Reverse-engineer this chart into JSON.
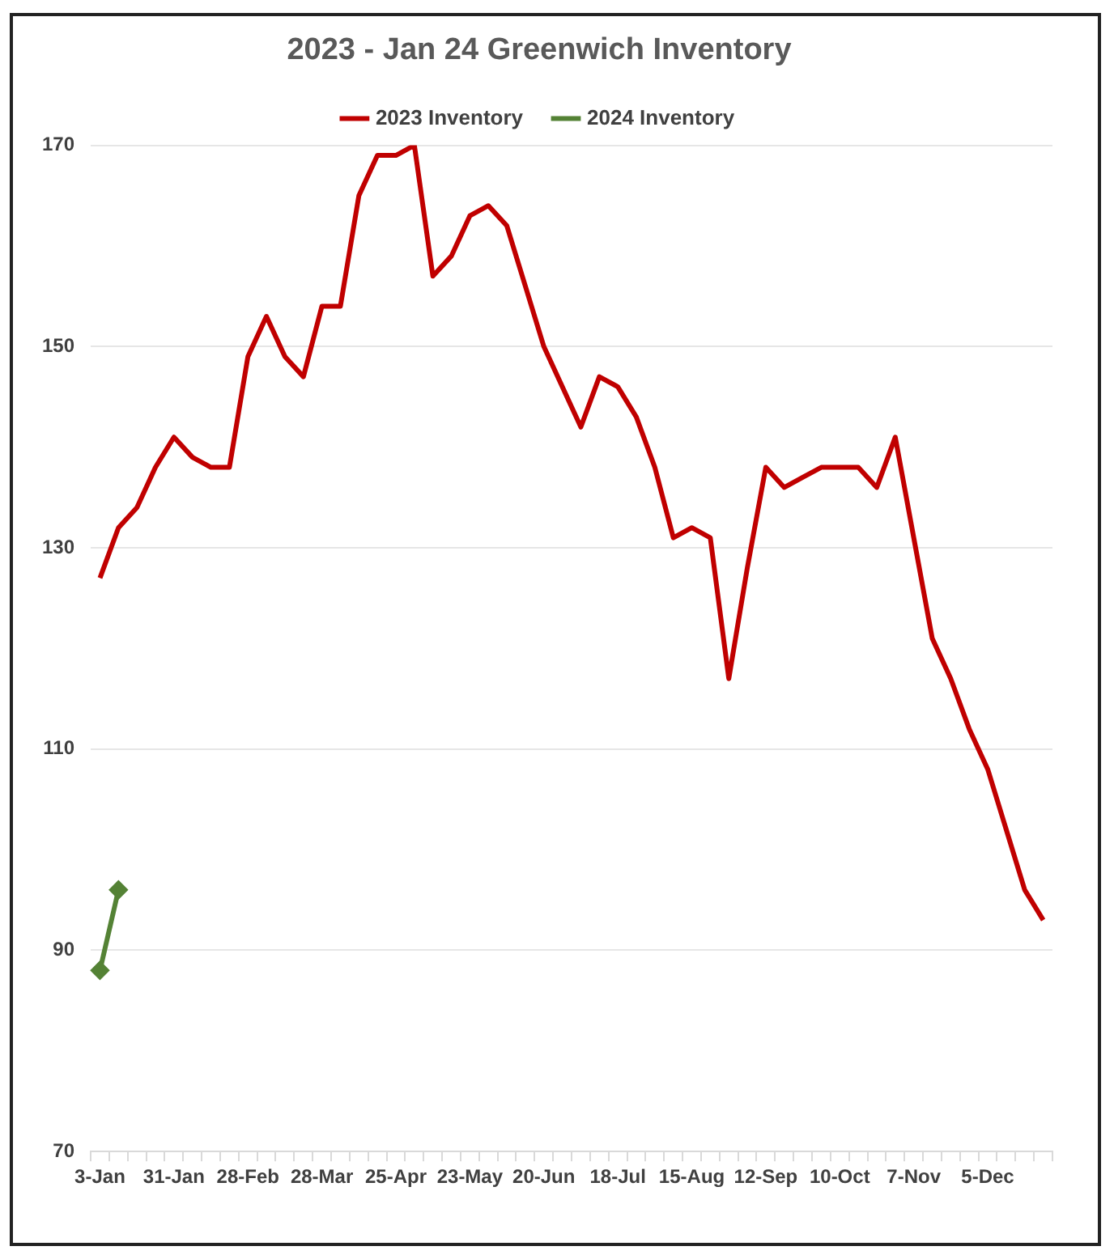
{
  "chart_data": {
    "type": "line",
    "title": "2023 - Jan 24 Greenwich Inventory",
    "categories": [
      "3-Jan",
      null,
      null,
      null,
      "31-Jan",
      null,
      null,
      null,
      "28-Feb",
      null,
      null,
      null,
      "28-Mar",
      null,
      null,
      null,
      "25-Apr",
      null,
      null,
      null,
      "23-May",
      null,
      null,
      null,
      "20-Jun",
      null,
      null,
      null,
      "18-Jul",
      null,
      null,
      null,
      "15-Aug",
      null,
      null,
      null,
      "12-Sep",
      null,
      null,
      null,
      "10-Oct",
      null,
      null,
      null,
      "7-Nov",
      null,
      null,
      null,
      "5-Dec",
      null,
      null,
      null
    ],
    "series": [
      {
        "name": "2023 Inventory",
        "color": "#c00000",
        "marker": "none",
        "values": [
          127,
          132,
          134,
          138,
          141,
          139,
          138,
          138,
          149,
          153,
          149,
          147,
          154,
          154,
          165,
          169,
          169,
          170,
          157,
          159,
          163,
          164,
          162,
          156,
          150,
          146,
          142,
          147,
          146,
          143,
          138,
          131,
          132,
          131,
          117,
          128,
          138,
          136,
          137,
          138,
          138,
          138,
          136,
          141,
          131,
          121,
          117,
          112,
          108,
          102,
          96,
          93
        ]
      },
      {
        "name": "2024 Inventory",
        "color": "#548235",
        "marker": "diamond",
        "values": [
          88,
          96,
          null,
          null,
          null,
          null,
          null,
          null,
          null,
          null,
          null,
          null,
          null,
          null,
          null,
          null,
          null,
          null,
          null,
          null,
          null,
          null,
          null,
          null,
          null,
          null,
          null,
          null,
          null,
          null,
          null,
          null,
          null,
          null,
          null,
          null,
          null,
          null,
          null,
          null,
          null,
          null,
          null,
          null,
          null,
          null,
          null,
          null,
          null,
          null,
          null,
          null
        ]
      }
    ],
    "ylim": [
      70,
      170
    ],
    "yticks": [
      70,
      90,
      110,
      130,
      150,
      170
    ],
    "grid": "y",
    "legend": "top"
  }
}
